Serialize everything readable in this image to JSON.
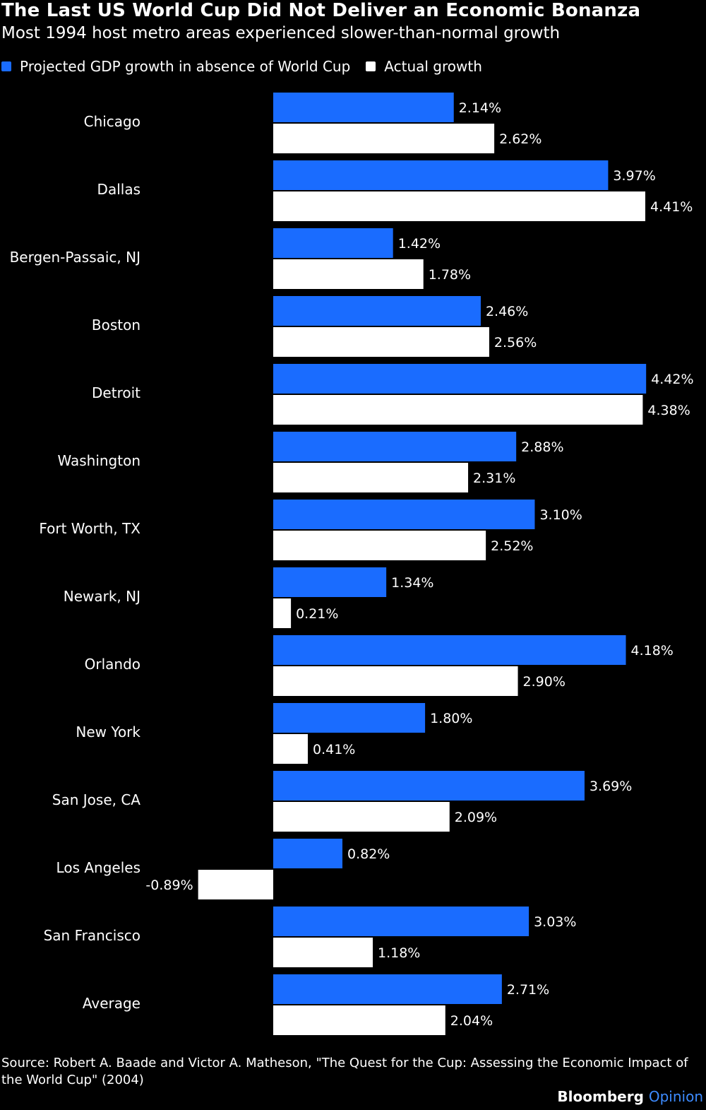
{
  "title": "The Last US World Cup Did Not Deliver an Economic Bonanza",
  "subtitle": "Most 1994 host metro areas experienced slower-than-normal growth",
  "legend": [
    {
      "label": "Projected GDP growth in absence of World Cup",
      "color": "#1a6cff"
    },
    {
      "label": "Actual growth",
      "color": "#ffffff"
    }
  ],
  "source": "Source: Robert A. Baade and Victor A. Matheson, \"The Quest for the Cup: Assessing the Economic Impact of the World Cup\" (2004)",
  "brand": {
    "name": "Bloomberg",
    "accent": "Opinion",
    "accent_color": "#3d8bff"
  },
  "chart_data": {
    "type": "bar",
    "orientation": "horizontal",
    "categories": [
      "Chicago",
      "Dallas",
      "Bergen-Passaic, NJ",
      "Boston",
      "Detroit",
      "Washington",
      "Fort Worth, TX",
      "Newark, NJ",
      "Orlando",
      "New York",
      "San Jose, CA",
      "Los Angeles",
      "San Francisco",
      "Average"
    ],
    "series": [
      {
        "name": "Projected GDP growth in absence of World Cup",
        "color": "#1a6cff",
        "values": [
          2.14,
          3.97,
          1.42,
          2.46,
          4.42,
          2.88,
          3.1,
          1.34,
          4.18,
          1.8,
          3.69,
          0.82,
          3.03,
          2.71
        ],
        "labels": [
          "2.14%",
          "3.97%",
          "1.42%",
          "2.46%",
          "4.42%",
          "2.88%",
          "3.10%",
          "1.34%",
          "4.18%",
          "1.80%",
          "3.69%",
          "0.82%",
          "3.03%",
          "2.71%"
        ]
      },
      {
        "name": "Actual growth",
        "color": "#ffffff",
        "values": [
          2.62,
          4.41,
          1.78,
          2.56,
          4.38,
          2.31,
          2.52,
          0.21,
          2.9,
          0.41,
          2.09,
          -0.89,
          1.18,
          2.04
        ],
        "labels": [
          "2.62%",
          "4.41%",
          "1.78%",
          "2.56%",
          "4.38%",
          "2.31%",
          "2.52%",
          "0.21%",
          "2.90%",
          "0.41%",
          "2.09%",
          "-0.89%",
          "1.18%",
          "2.04%"
        ]
      }
    ],
    "xlim": [
      -0.89,
      4.42
    ],
    "grid": false,
    "legend_position": "top-left"
  }
}
